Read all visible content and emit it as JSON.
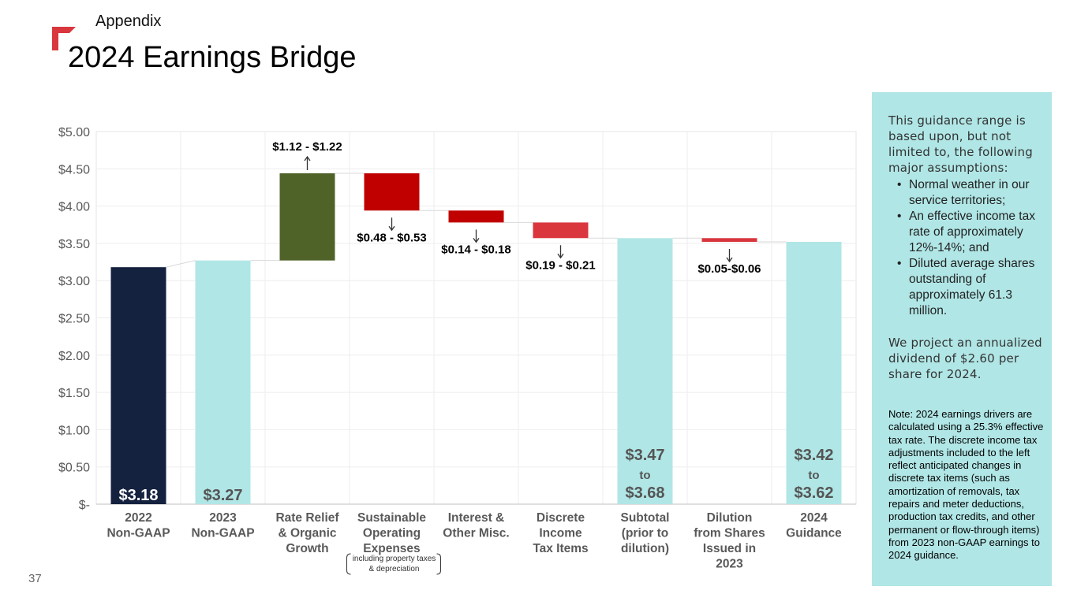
{
  "header": {
    "section_label": "Appendix",
    "title": "2024 Earnings Bridge",
    "page_number": "37"
  },
  "brand": {
    "accent": "#d9363e"
  },
  "chart_data": {
    "type": "waterfall",
    "ylim": [
      0,
      5
    ],
    "y_ticks": [
      {
        "value": 5.0,
        "label": "$5.00"
      },
      {
        "value": 4.5,
        "label": "$4.50"
      },
      {
        "value": 4.0,
        "label": "$4.00"
      },
      {
        "value": 3.5,
        "label": "$3.50"
      },
      {
        "value": 3.0,
        "label": "$3.00"
      },
      {
        "value": 2.5,
        "label": "$2.50"
      },
      {
        "value": 2.0,
        "label": "$2.00"
      },
      {
        "value": 1.5,
        "label": "$1.50"
      },
      {
        "value": 1.0,
        "label": "$1.00"
      },
      {
        "value": 0.5,
        "label": "$0.50"
      },
      {
        "value": 0.0,
        "label": "$-"
      }
    ],
    "grid": true,
    "bars": [
      {
        "category": [
          "2022",
          "Non-GAAP"
        ],
        "bottom": 0,
        "top": 3.18,
        "color": "#14223f",
        "label": [
          "$3.18"
        ],
        "label_color": "#ffffff"
      },
      {
        "category": [
          "2023",
          "Non-GAAP"
        ],
        "bottom": 0,
        "top": 3.27,
        "color": "#b1e6e6",
        "label": [
          "$3.27"
        ],
        "label_color": "#555555"
      },
      {
        "category": [
          "Rate Relief",
          "& Organic",
          "Growth"
        ],
        "bottom": 3.27,
        "top": 4.44,
        "color": "#4f6228",
        "label": [
          "$1.12 - $1.22"
        ],
        "direction": "up"
      },
      {
        "category": [
          "Sustainable",
          "Operating",
          "Expenses"
        ],
        "bottom": 3.94,
        "top": 4.44,
        "color": "#c00000",
        "label": [
          "$0.48 - $0.53"
        ],
        "direction": "down"
      },
      {
        "category": [
          "Interest &",
          "Other Misc."
        ],
        "bottom": 3.78,
        "top": 3.94,
        "color": "#c00000",
        "label": [
          "$0.14 - $0.18"
        ],
        "direction": "down"
      },
      {
        "category": [
          "Discrete",
          "Income",
          "Tax Items"
        ],
        "bottom": 3.57,
        "top": 3.78,
        "color": "#d9363e",
        "label": [
          "$0.19 - $0.21"
        ],
        "direction": "down"
      },
      {
        "category": [
          "Subtotal",
          "(prior to",
          "dilution)"
        ],
        "bottom": 0,
        "top": 3.57,
        "color": "#b1e6e6",
        "label": [
          "$3.47",
          "to",
          "$3.68"
        ],
        "label_color": "#555555"
      },
      {
        "category": [
          "Dilution",
          "from Shares",
          "Issued in",
          "2023"
        ],
        "bottom": 3.52,
        "top": 3.57,
        "color": "#d9363e",
        "label": [
          "$0.05-$0.06"
        ],
        "direction": "down"
      },
      {
        "category": [
          "2024",
          "Guidance"
        ],
        "bottom": 0,
        "top": 3.52,
        "color": "#b1e6e6",
        "label": [
          "$3.42",
          "to",
          "$3.62"
        ],
        "label_color": "#555555"
      }
    ],
    "annotation": [
      "including property taxes",
      "& depreciation"
    ]
  },
  "sidebar": {
    "intro": "This guidance range is based upon, but not limited to, the following major assumptions:",
    "bullet_glyph": "•",
    "assumptions": [
      "Normal weather in our service territories;",
      "An effective income tax rate of approximately 12%-14%; and",
      "Diluted average shares outstanding of approximately 61.3 million."
    ],
    "dividend": "We project an annualized dividend of $2.60 per share for 2024.",
    "note": "Note: 2024 earnings drivers are calculated using a 25.3% effective tax rate. The discrete income tax adjustments included to the left reflect anticipated changes in discrete tax items (such as amortization of removals, tax repairs and meter deductions, production tax credits, and other permanent or flow-through items) from 2023 non-GAAP earnings to 2024 guidance."
  }
}
